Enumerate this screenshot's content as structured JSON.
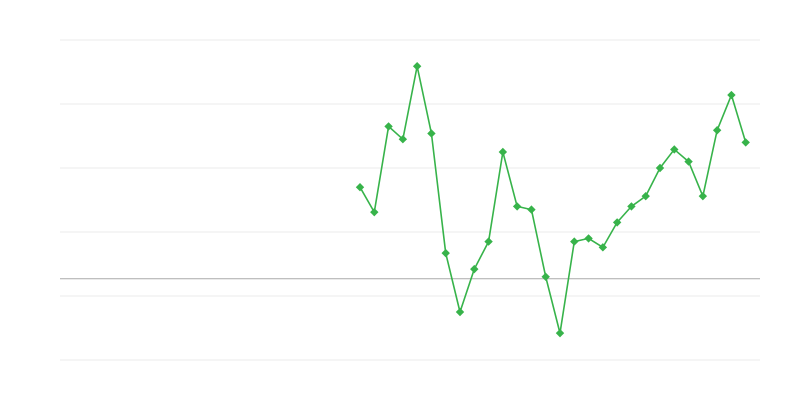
{
  "chart_data": {
    "type": "line",
    "title": "",
    "xlabel": "",
    "ylabel": "",
    "xlim": [
      0,
      49
    ],
    "ylim": [
      -1,
      4
    ],
    "grid": true,
    "gridlines_y": [
      -1,
      0,
      1,
      2,
      3,
      4
    ],
    "baseline_y": 0.27,
    "marker": "diamond",
    "color": "#37b34a",
    "grid_color": "#ebebeb",
    "baseline_color": "#aaaaaa",
    "series": [
      {
        "x": [
          21,
          22,
          23,
          24,
          25,
          26,
          27,
          28,
          29,
          30,
          31,
          32,
          33,
          34,
          35,
          36,
          37,
          38,
          39,
          40,
          41,
          42,
          43,
          44,
          45,
          46,
          47,
          48
        ],
        "values": [
          1.7,
          1.31,
          2.65,
          2.45,
          3.59,
          2.54,
          0.67,
          -0.25,
          0.42,
          0.85,
          2.25,
          1.4,
          1.35,
          0.3,
          -0.58,
          0.85,
          0.9,
          0.76,
          1.15,
          1.4,
          1.56,
          2.0,
          2.29,
          2.1,
          1.56,
          2.59,
          3.14,
          2.4
        ]
      }
    ]
  }
}
